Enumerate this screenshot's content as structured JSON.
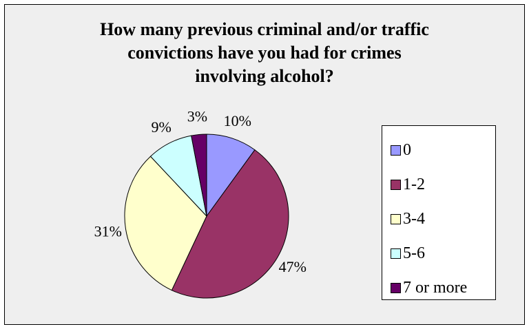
{
  "chart_data": {
    "type": "pie",
    "title": "How many previous criminal and/or traffic\nconvictions have you had for crimes\ninvolving alcohol?",
    "categories": [
      "0",
      "1-2",
      "3-4",
      "5-6",
      "7 or more"
    ],
    "values": [
      10,
      47,
      31,
      9,
      3
    ],
    "labels": [
      "10%",
      "47%",
      "31%",
      "9%",
      "3%"
    ],
    "colors": [
      "#9999ff",
      "#993366",
      "#ffffcc",
      "#ccffff",
      "#660066"
    ],
    "legend_position": "right"
  }
}
